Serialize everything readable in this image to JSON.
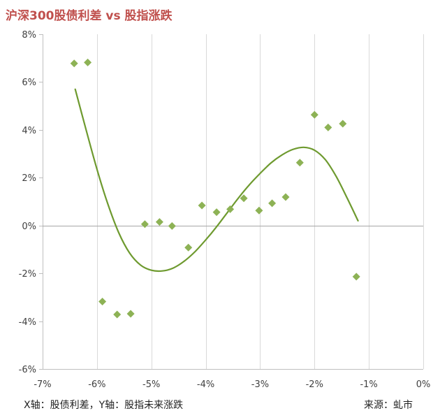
{
  "chart_data": {
    "type": "scatter",
    "title": "沪深300股债利差 vs 股指涨跌",
    "xlabel": "",
    "ylabel": "",
    "xlim": [
      -0.07,
      0.0
    ],
    "ylim": [
      -0.06,
      0.08
    ],
    "x_ticks": [
      -0.07,
      -0.06,
      -0.05,
      -0.04,
      -0.03,
      -0.02,
      -0.01,
      0.0
    ],
    "x_tick_labels": [
      "-7%",
      "-6%",
      "-5%",
      "-4%",
      "-3%",
      "-2%",
      "-1%",
      "0%"
    ],
    "y_ticks": [
      -0.06,
      -0.04,
      -0.02,
      0.0,
      0.02,
      0.04,
      0.06,
      0.08
    ],
    "y_tick_labels": [
      "-6%",
      "-4%",
      "-2%",
      "0%",
      "2%",
      "4%",
      "6%",
      "8%"
    ],
    "grid": "vertical",
    "legend": "none",
    "series": [
      {
        "type": "scatter",
        "marker": "diamond",
        "color": "#8db255",
        "points": [
          [
            -0.0642,
            0.0678
          ],
          [
            -0.0617,
            0.0682
          ],
          [
            -0.059,
            -0.0318
          ],
          [
            -0.0563,
            -0.0372
          ],
          [
            -0.0538,
            -0.0369
          ],
          [
            -0.0512,
            0.0006
          ],
          [
            -0.0485,
            0.0015
          ],
          [
            -0.0462,
            -0.0002
          ],
          [
            -0.0432,
            -0.0092
          ],
          [
            -0.0407,
            0.0084
          ],
          [
            -0.038,
            0.0056
          ],
          [
            -0.0355,
            0.0068
          ],
          [
            -0.033,
            0.0114
          ],
          [
            -0.0302,
            0.0063
          ],
          [
            -0.0278,
            0.0093
          ],
          [
            -0.0253,
            0.0119
          ],
          [
            -0.0227,
            0.0263
          ],
          [
            -0.02,
            0.0463
          ],
          [
            -0.0175,
            0.041
          ],
          [
            -0.0148,
            0.0426
          ],
          [
            -0.0123,
            -0.0214
          ]
        ]
      },
      {
        "type": "line",
        "smooth": true,
        "color": "#6e9a2f",
        "points": [
          [
            -0.064,
            0.057
          ],
          [
            -0.062,
            0.04
          ],
          [
            -0.06,
            0.0235
          ],
          [
            -0.058,
            0.009
          ],
          [
            -0.056,
            -0.003
          ],
          [
            -0.054,
            -0.0115
          ],
          [
            -0.052,
            -0.0165
          ],
          [
            -0.05,
            -0.0187
          ],
          [
            -0.048,
            -0.019
          ],
          [
            -0.046,
            -0.0178
          ],
          [
            -0.044,
            -0.015
          ],
          [
            -0.042,
            -0.011
          ],
          [
            -0.04,
            -0.006
          ],
          [
            -0.038,
            -0.0005
          ],
          [
            -0.036,
            0.0055
          ],
          [
            -0.034,
            0.0115
          ],
          [
            -0.032,
            0.017
          ],
          [
            -0.03,
            0.0218
          ],
          [
            -0.028,
            0.0262
          ],
          [
            -0.026,
            0.0295
          ],
          [
            -0.024,
            0.0318
          ],
          [
            -0.022,
            0.0327
          ],
          [
            -0.02,
            0.0315
          ],
          [
            -0.018,
            0.0275
          ],
          [
            -0.016,
            0.0205
          ],
          [
            -0.014,
            0.0115
          ],
          [
            -0.012,
            0.002
          ]
        ]
      }
    ]
  },
  "footer": {
    "axis_note": "X轴：股债利差，Y轴：股指未来涨跌",
    "source": "来源：虬市"
  }
}
